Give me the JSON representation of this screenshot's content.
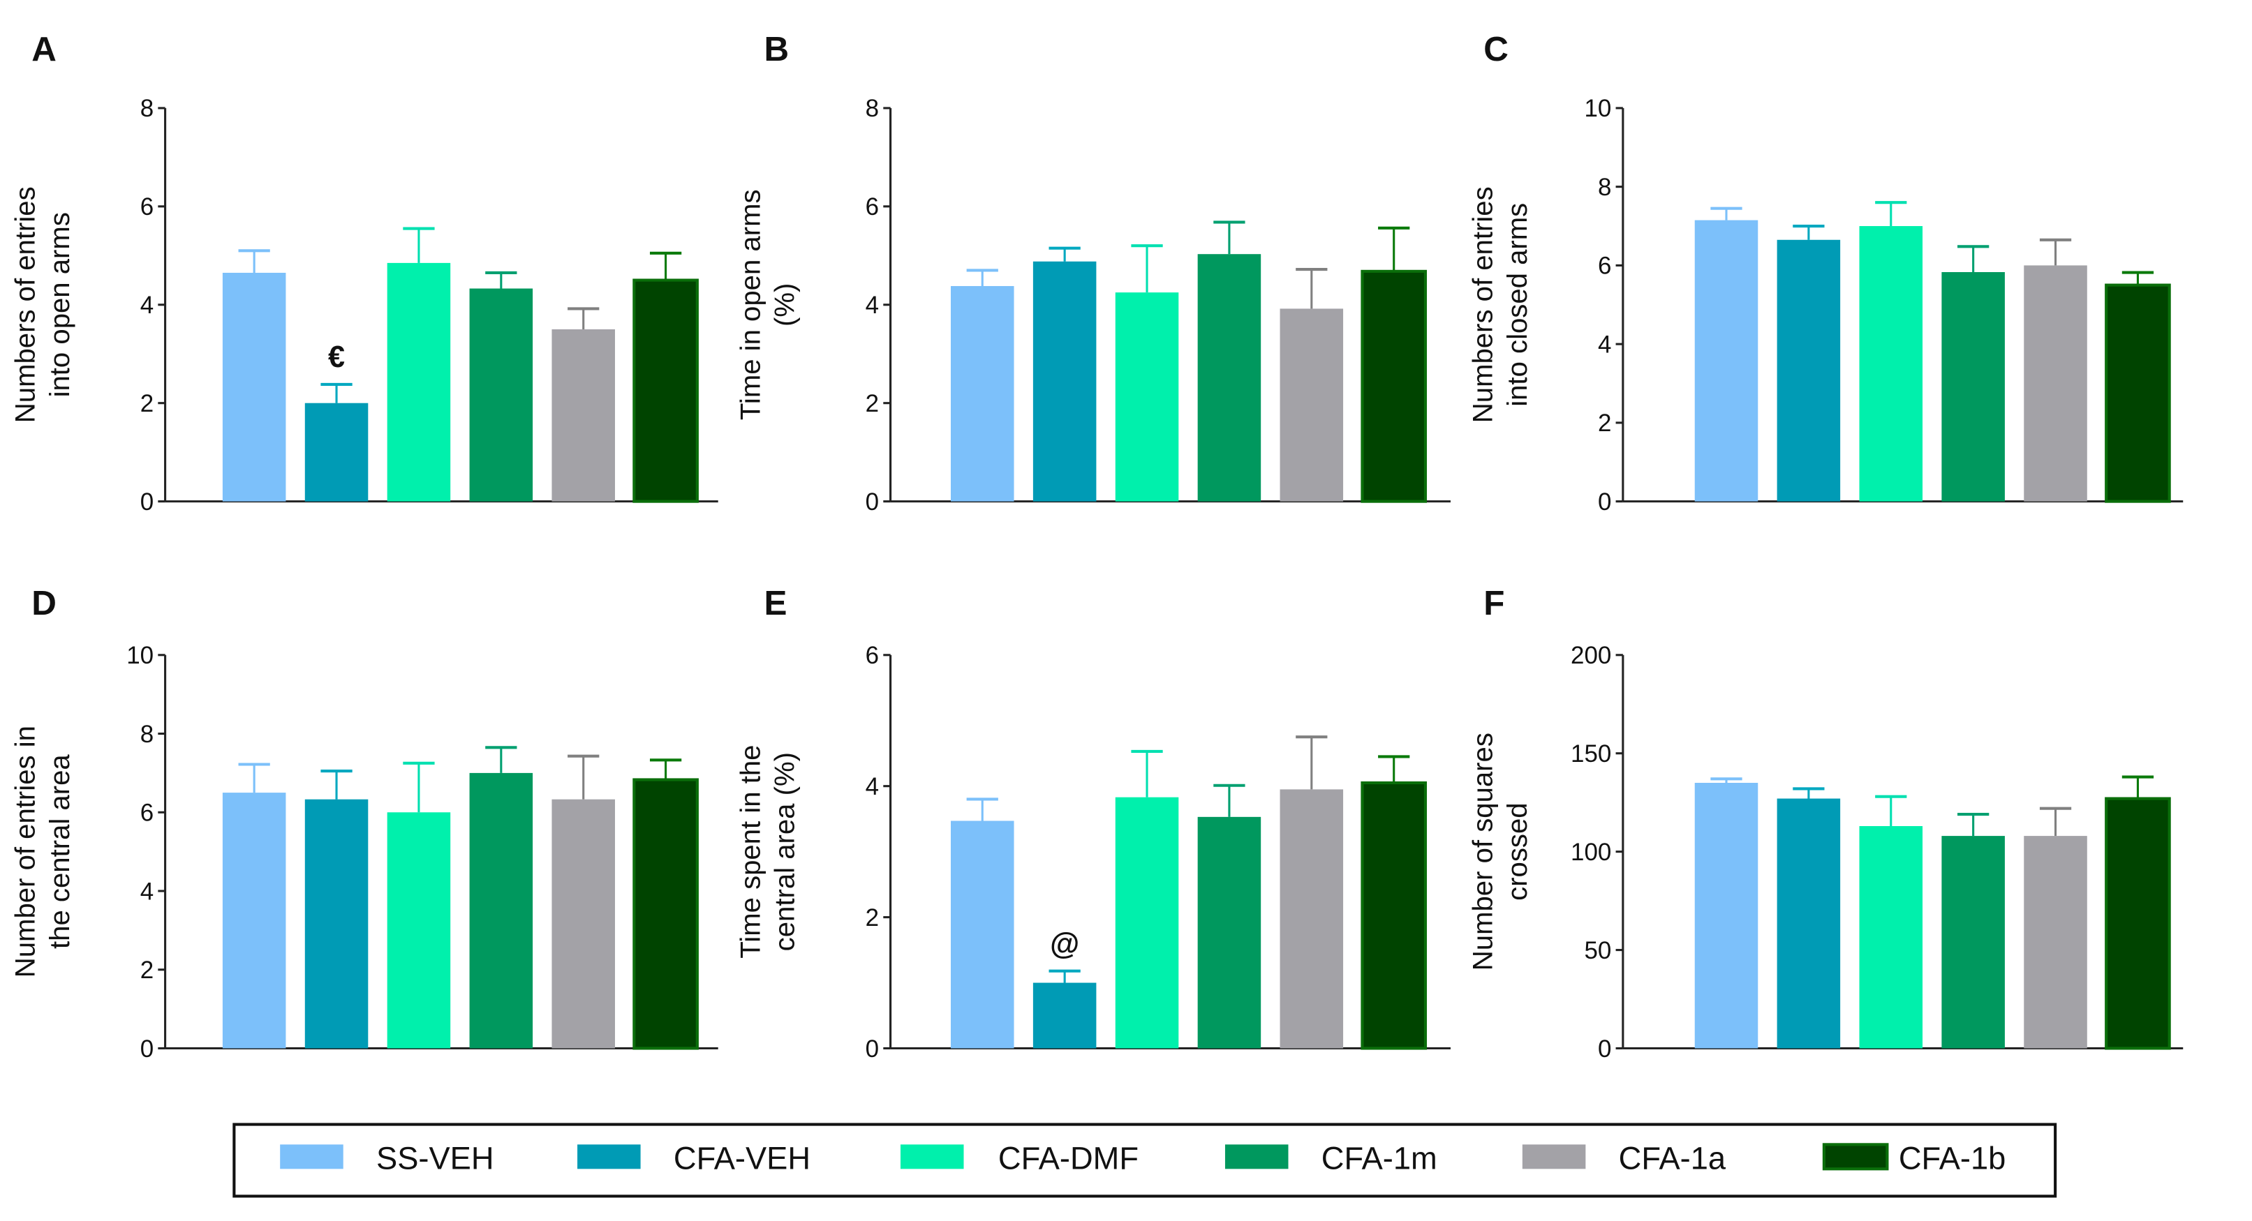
{
  "legend": {
    "groups": [
      "SS-VEH",
      "CFA-VEH",
      "CFA-DMF",
      "CFA-1m",
      "CFA-1a",
      "CFA-1b"
    ],
    "colors": [
      "#7cc0fa",
      "#009bb5",
      "#00f0ac",
      "#00985e",
      "#a3a2a7",
      "#004400"
    ]
  },
  "chart_data": [
    {
      "panel": "A",
      "type": "bar",
      "ylabel": [
        "Numbers of entries",
        "into open arms"
      ],
      "ylim": [
        0,
        8
      ],
      "yticks": [
        0,
        2,
        4,
        6,
        8
      ],
      "categories": [
        "SS-VEH",
        "CFA-VEH",
        "CFA-DMF",
        "CFA-1m",
        "CFA-1a",
        "CFA-1b"
      ],
      "values": [
        4.65,
        2.0,
        4.85,
        4.33,
        3.5,
        4.5
      ],
      "errors": [
        0.45,
        0.38,
        0.7,
        0.32,
        0.42,
        0.55
      ],
      "annotations": [
        {
          "index": 1,
          "text": "€"
        }
      ]
    },
    {
      "panel": "B",
      "type": "bar",
      "ylabel": [
        "Time in open arms",
        "(%)"
      ],
      "ylim": [
        0,
        8
      ],
      "yticks": [
        0,
        2,
        4,
        6,
        8
      ],
      "categories": [
        "SS-VEH",
        "CFA-VEH",
        "CFA-DMF",
        "CFA-1m",
        "CFA-1a",
        "CFA-1b"
      ],
      "values": [
        4.38,
        4.88,
        4.25,
        5.03,
        3.92,
        4.68
      ],
      "errors": [
        0.32,
        0.27,
        0.95,
        0.65,
        0.8,
        0.88
      ],
      "annotations": []
    },
    {
      "panel": "C",
      "type": "bar",
      "ylabel": [
        "Numbers of entries",
        "into closed arms"
      ],
      "ylim": [
        0,
        10
      ],
      "yticks": [
        0,
        2,
        4,
        6,
        8,
        10
      ],
      "categories": [
        "SS-VEH",
        "CFA-VEH",
        "CFA-DMF",
        "CFA-1m",
        "CFA-1a",
        "CFA-1b"
      ],
      "values": [
        7.15,
        6.65,
        7.0,
        5.83,
        6.0,
        5.5
      ],
      "errors": [
        0.3,
        0.35,
        0.6,
        0.65,
        0.65,
        0.32
      ],
      "annotations": []
    },
    {
      "panel": "D",
      "type": "bar",
      "ylabel": [
        "Number of entries in",
        "the central area"
      ],
      "ylim": [
        0,
        10
      ],
      "yticks": [
        0,
        2,
        4,
        6,
        8,
        10
      ],
      "categories": [
        "SS-VEH",
        "CFA-VEH",
        "CFA-DMF",
        "CFA-1m",
        "CFA-1a",
        "CFA-1b"
      ],
      "values": [
        6.5,
        6.33,
        6.0,
        7.0,
        6.33,
        6.83
      ],
      "errors": [
        0.72,
        0.72,
        1.25,
        0.65,
        1.1,
        0.5
      ],
      "annotations": []
    },
    {
      "panel": "E",
      "type": "bar",
      "ylabel": [
        "Time spent in the",
        "central area (%)"
      ],
      "ylim": [
        0,
        6
      ],
      "yticks": [
        0,
        2,
        4,
        6
      ],
      "categories": [
        "SS-VEH",
        "CFA-VEH",
        "CFA-DMF",
        "CFA-1m",
        "CFA-1a",
        "CFA-1b"
      ],
      "values": [
        3.47,
        1.0,
        3.83,
        3.53,
        3.95,
        4.05
      ],
      "errors": [
        0.33,
        0.18,
        0.7,
        0.48,
        0.8,
        0.4
      ],
      "annotations": [
        {
          "index": 1,
          "text": "@"
        }
      ]
    },
    {
      "panel": "F",
      "type": "bar",
      "ylabel": [
        "Number of squares",
        "crossed"
      ],
      "ylim": [
        0,
        200
      ],
      "yticks": [
        0,
        50,
        100,
        150,
        200
      ],
      "categories": [
        "SS-VEH",
        "CFA-VEH",
        "CFA-DMF",
        "CFA-1m",
        "CFA-1a",
        "CFA-1b"
      ],
      "values": [
        135,
        127,
        113,
        108,
        108,
        127
      ],
      "errors": [
        2,
        5,
        15,
        11,
        14,
        11
      ],
      "annotations": []
    }
  ]
}
